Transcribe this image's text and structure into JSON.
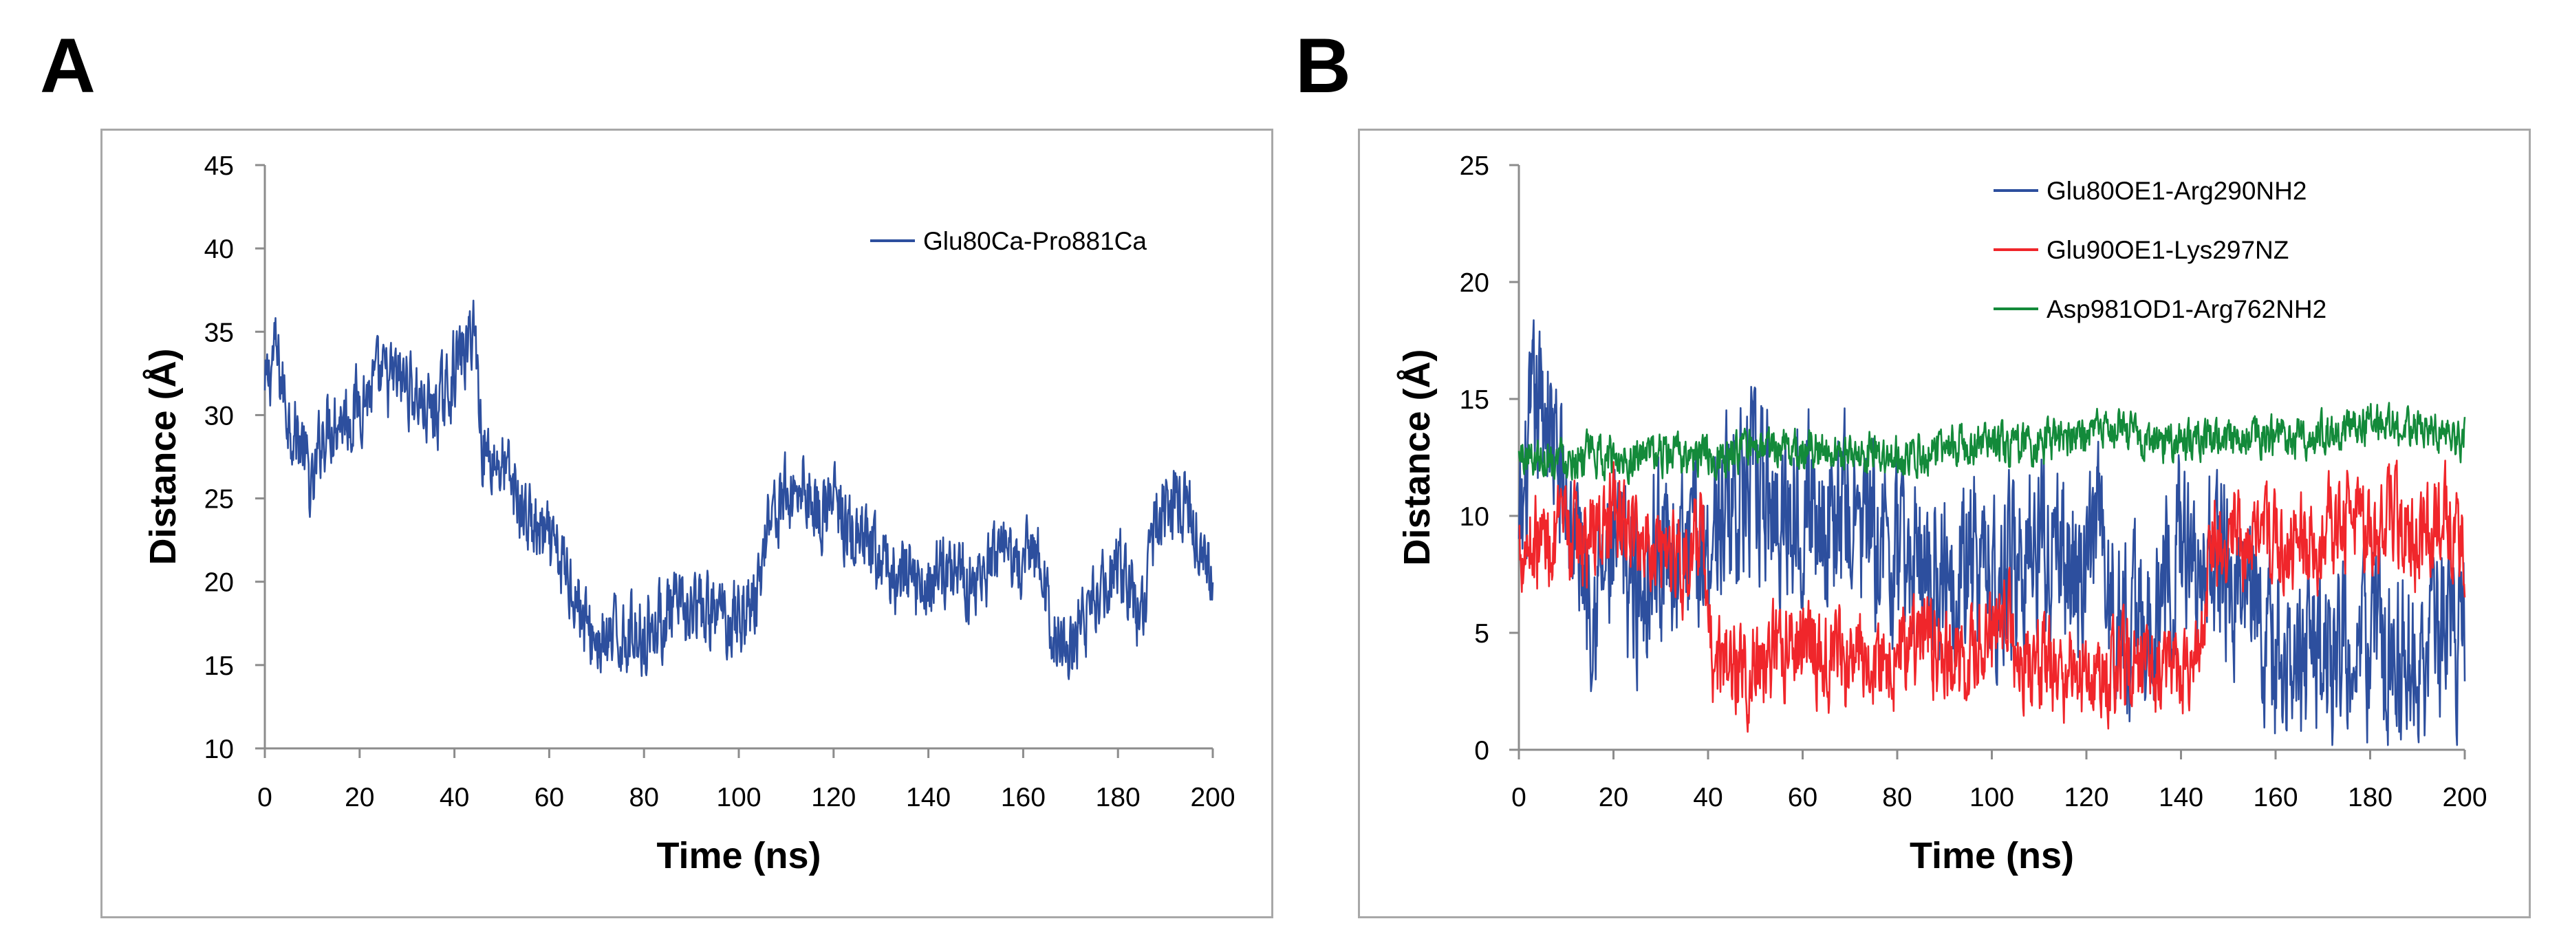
{
  "panels": {
    "a_letter": "A",
    "b_letter": "B"
  },
  "colors": {
    "blue": "#2d4f9e",
    "red": "#f0262b",
    "green": "#138a3a",
    "axis": "#8c8c8c",
    "frame": "#a8a8a8"
  },
  "chart_data": [
    {
      "type": "line",
      "panel": "A",
      "title": "",
      "xlabel": "Time (ns)",
      "ylabel": "Distance (Å)",
      "xlim": [
        0,
        200
      ],
      "ylim": [
        10,
        45
      ],
      "xticks": [
        0,
        20,
        40,
        60,
        80,
        100,
        120,
        140,
        160,
        180,
        200
      ],
      "yticks": [
        10,
        15,
        20,
        25,
        30,
        35,
        40,
        45
      ],
      "legend_position": "top-right",
      "grid": false,
      "series": [
        {
          "name": "Glu80Ca-Pro881Ca",
          "color": "#2d4f9e",
          "noise": 2.6,
          "points": [
            [
              0,
              31
            ],
            [
              2,
              34
            ],
            [
              5,
              30
            ],
            [
              8,
              28
            ],
            [
              10,
              25
            ],
            [
              12,
              29
            ],
            [
              15,
              30
            ],
            [
              18,
              30
            ],
            [
              20,
              31
            ],
            [
              25,
              32
            ],
            [
              30,
              32
            ],
            [
              35,
              30
            ],
            [
              38,
              31
            ],
            [
              40,
              33
            ],
            [
              43,
              34
            ],
            [
              44,
              36
            ],
            [
              46,
              28
            ],
            [
              50,
              27
            ],
            [
              55,
              24
            ],
            [
              60,
              22
            ],
            [
              65,
              20
            ],
            [
              68,
              17
            ],
            [
              72,
              16
            ],
            [
              76,
              17
            ],
            [
              80,
              17
            ],
            [
              85,
              18
            ],
            [
              90,
              18
            ],
            [
              95,
              18
            ],
            [
              100,
              18
            ],
            [
              104,
              19
            ],
            [
              106,
              24
            ],
            [
              110,
              25
            ],
            [
              114,
              26
            ],
            [
              117,
              24
            ],
            [
              120,
              25
            ],
            [
              123,
              23
            ],
            [
              126,
              22
            ],
            [
              130,
              21
            ],
            [
              135,
              20
            ],
            [
              140,
              20
            ],
            [
              145,
              21
            ],
            [
              150,
              20
            ],
            [
              155,
              21
            ],
            [
              160,
              21
            ],
            [
              163,
              22
            ],
            [
              166,
              17
            ],
            [
              170,
              16
            ],
            [
              175,
              19
            ],
            [
              180,
              21
            ],
            [
              185,
              18
            ],
            [
              188,
              24
            ],
            [
              192,
              25
            ],
            [
              195,
              24
            ],
            [
              198,
              22
            ],
            [
              200,
              20
            ]
          ]
        }
      ]
    },
    {
      "type": "line",
      "panel": "B",
      "title": "",
      "xlabel": "Time (ns)",
      "ylabel": "Distance (Å)",
      "xlim": [
        0,
        200
      ],
      "ylim": [
        0,
        25
      ],
      "xticks": [
        0,
        20,
        40,
        60,
        80,
        100,
        120,
        140,
        160,
        180,
        200
      ],
      "yticks": [
        0,
        5,
        10,
        15,
        20,
        25
      ],
      "legend_position": "top-right",
      "grid": false,
      "series": [
        {
          "name": "Glu80OE1-Arg290NH2",
          "color": "#2d4f9e",
          "noise": 4.2,
          "points": [
            [
              0,
              8
            ],
            [
              3,
              14
            ],
            [
              6,
              15
            ],
            [
              8,
              12
            ],
            [
              12,
              9
            ],
            [
              16,
              7
            ],
            [
              20,
              8
            ],
            [
              25,
              7
            ],
            [
              30,
              9
            ],
            [
              35,
              8
            ],
            [
              40,
              9
            ],
            [
              45,
              11
            ],
            [
              50,
              11
            ],
            [
              55,
              10
            ],
            [
              60,
              11
            ],
            [
              65,
              10
            ],
            [
              70,
              10
            ],
            [
              75,
              9
            ],
            [
              80,
              8
            ],
            [
              85,
              8
            ],
            [
              90,
              8
            ],
            [
              95,
              8
            ],
            [
              100,
              7
            ],
            [
              105,
              8
            ],
            [
              110,
              9
            ],
            [
              115,
              8
            ],
            [
              120,
              7
            ],
            [
              122,
              10
            ],
            [
              125,
              6
            ],
            [
              130,
              5
            ],
            [
              135,
              6
            ],
            [
              140,
              9
            ],
            [
              145,
              8
            ],
            [
              150,
              8
            ],
            [
              155,
              6
            ],
            [
              160,
              4
            ],
            [
              165,
              4
            ],
            [
              170,
              4
            ],
            [
              175,
              4
            ],
            [
              180,
              4
            ],
            [
              185,
              4
            ],
            [
              190,
              4
            ],
            [
              195,
              5
            ],
            [
              200,
              5
            ]
          ]
        },
        {
          "name": "Glu90OE1-Lys297NZ",
          "color": "#f0262b",
          "noise": 2.3,
          "points": [
            [
              0,
              9
            ],
            [
              5,
              9
            ],
            [
              10,
              9
            ],
            [
              15,
              9
            ],
            [
              20,
              10
            ],
            [
              25,
              9
            ],
            [
              30,
              9
            ],
            [
              35,
              8
            ],
            [
              39,
              9
            ],
            [
              40,
              4
            ],
            [
              45,
              3.5
            ],
            [
              50,
              3.5
            ],
            [
              55,
              4
            ],
            [
              60,
              5
            ],
            [
              65,
              4
            ],
            [
              70,
              3.5
            ],
            [
              75,
              4
            ],
            [
              80,
              4
            ],
            [
              85,
              5
            ],
            [
              90,
              4
            ],
            [
              95,
              3.5
            ],
            [
              100,
              5
            ],
            [
              103,
              6
            ],
            [
              106,
              4
            ],
            [
              110,
              3.5
            ],
            [
              115,
              3.5
            ],
            [
              120,
              3.5
            ],
            [
              125,
              3.5
            ],
            [
              130,
              3.5
            ],
            [
              135,
              3.5
            ],
            [
              140,
              3.5
            ],
            [
              144,
              4
            ],
            [
              146,
              9
            ],
            [
              150,
              9
            ],
            [
              155,
              9
            ],
            [
              160,
              9
            ],
            [
              165,
              9
            ],
            [
              170,
              9
            ],
            [
              175,
              10
            ],
            [
              180,
              9
            ],
            [
              185,
              10
            ],
            [
              190,
              9
            ],
            [
              195,
              10
            ],
            [
              200,
              9
            ]
          ]
        },
        {
          "name": "Asp981OD1-Arg762NH2",
          "color": "#138a3a",
          "noise": 1.0,
          "points": [
            [
              0,
              12.5
            ],
            [
              10,
              12.6
            ],
            [
              20,
              12.5
            ],
            [
              30,
              12.6
            ],
            [
              40,
              12.5
            ],
            [
              50,
              12.8
            ],
            [
              60,
              12.9
            ],
            [
              70,
              12.7
            ],
            [
              80,
              12.6
            ],
            [
              90,
              12.9
            ],
            [
              100,
              13.0
            ],
            [
              110,
              13.1
            ],
            [
              120,
              13.2
            ],
            [
              125,
              14
            ],
            [
              130,
              13.3
            ],
            [
              140,
              13.2
            ],
            [
              150,
              13.3
            ],
            [
              160,
              13.3
            ],
            [
              170,
              13.5
            ],
            [
              180,
              14.0
            ],
            [
              190,
              13.8
            ],
            [
              200,
              13.3
            ]
          ]
        }
      ]
    }
  ]
}
